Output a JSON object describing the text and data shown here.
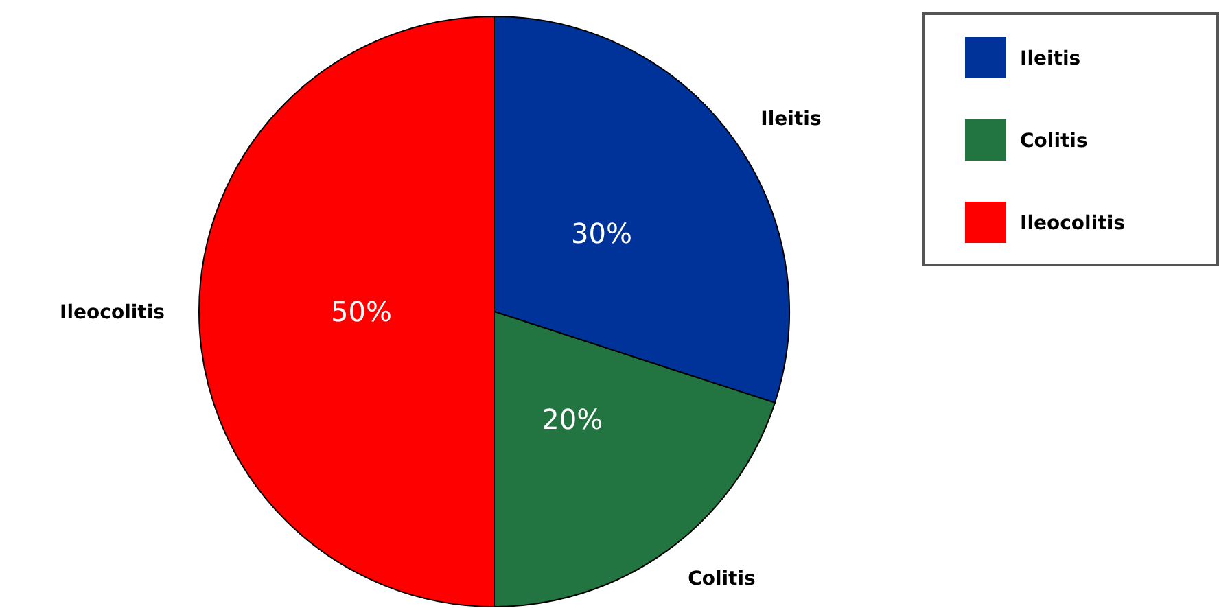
{
  "chart_data": {
    "type": "pie",
    "categories": [
      "Ileitis",
      "Colitis",
      "Ileocolitis"
    ],
    "values": [
      30,
      20,
      50
    ],
    "colors": [
      "#003399",
      "#227440",
      "#ff0000"
    ],
    "value_labels": [
      "30%",
      "20%",
      "50%"
    ],
    "legend": "top right"
  }
}
